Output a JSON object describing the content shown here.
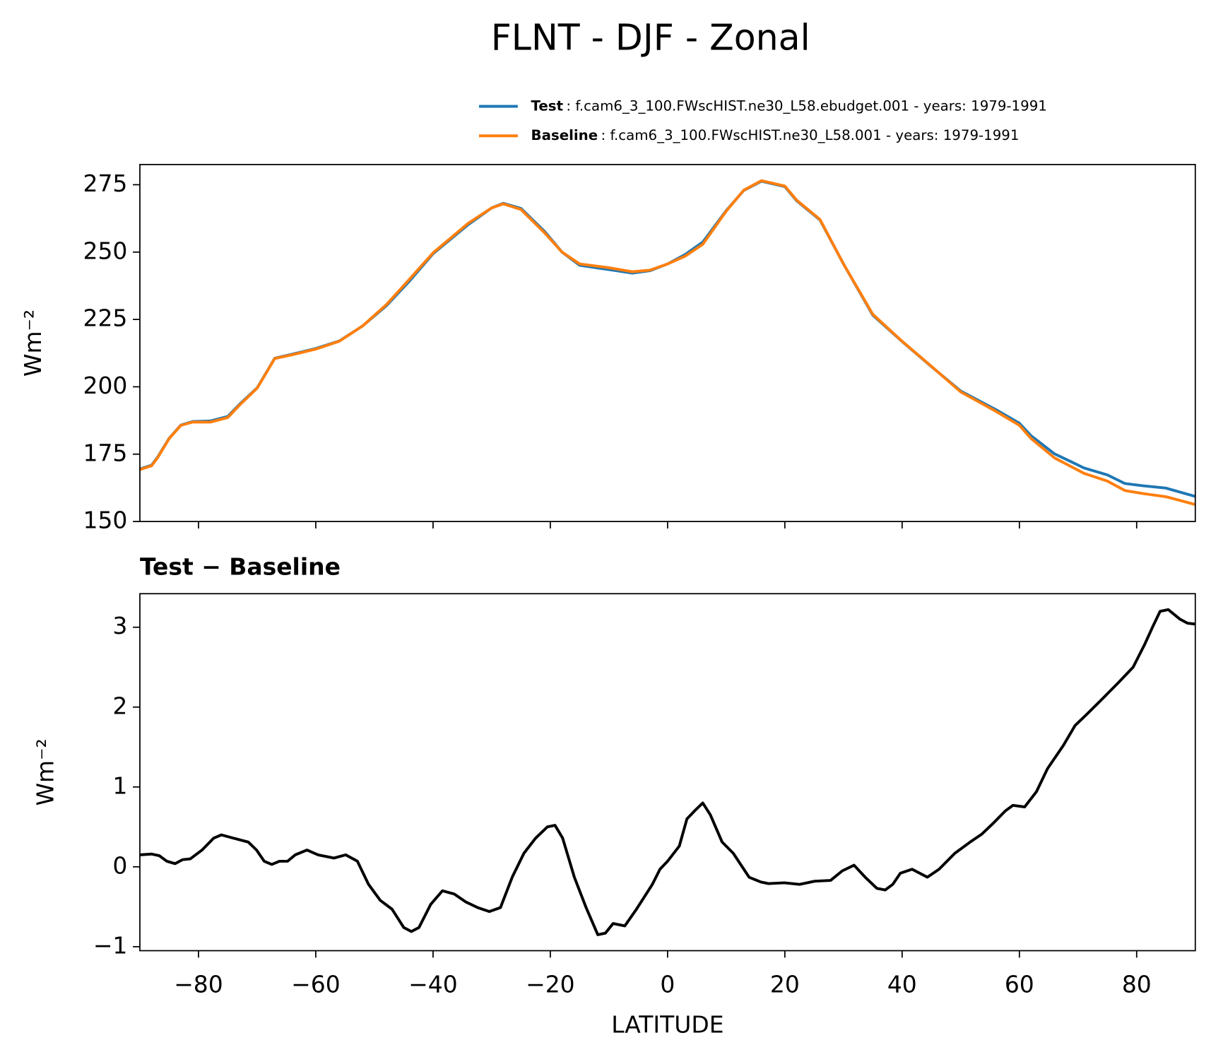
{
  "chart_data": [
    {
      "type": "line",
      "title": "FLNT - DJF - Zonal",
      "ylabel": "Wm⁻²",
      "xlim": [
        -90,
        90
      ],
      "ylim": [
        150,
        282.5
      ],
      "xticks": [
        -80,
        -60,
        -40,
        -20,
        0,
        20,
        40,
        60,
        80
      ],
      "yticks": [
        150,
        175,
        200,
        225,
        250,
        275
      ],
      "legend": "upper right",
      "x": [
        -90,
        -88,
        -87,
        -85,
        -83,
        -81,
        -78,
        -75,
        -73,
        -70,
        -67,
        -64,
        -60,
        -56,
        -52,
        -48,
        -44,
        -40,
        -34,
        -30,
        -28,
        -25,
        -21,
        -18,
        -15,
        -10,
        -6,
        -3,
        0,
        3,
        6,
        10,
        13,
        16,
        20,
        22,
        26,
        30,
        35,
        40,
        45,
        50,
        56,
        60,
        62,
        66,
        69,
        71,
        75,
        78,
        81,
        85,
        90
      ],
      "series": [
        {
          "name": "Test",
          "description": ": f.cam6_3_100.FWscHIST.ne30_L58.ebudget.001 - years: 1979-1991",
          "color": "#1f77b4",
          "values": [
            169.5,
            170.9,
            173.8,
            180.9,
            185.8,
            187.1,
            187.3,
            189.0,
            193.5,
            199.6,
            210.6,
            212.1,
            214.2,
            217.0,
            222.6,
            230.0,
            239.3,
            249.4,
            260.2,
            266.4,
            268.1,
            266.2,
            257.7,
            250.0,
            245.1,
            243.5,
            242.2,
            243.1,
            245.6,
            249.1,
            253.7,
            265.4,
            272.9,
            276.3,
            274.3,
            269.1,
            261.9,
            245.6,
            226.6,
            216.8,
            207.5,
            198.4,
            191.5,
            186.5,
            181.8,
            175.1,
            172.0,
            169.9,
            167.3,
            164.1,
            163.3,
            162.4,
            159.3
          ]
        },
        {
          "name": "Baseline",
          "description": ": f.cam6_3_100.FWscHIST.ne30_L58.001 - years: 1979-1991",
          "color": "#ff7f0e",
          "values": [
            169.3,
            170.7,
            173.6,
            180.8,
            185.7,
            186.9,
            186.9,
            188.6,
            193.2,
            199.5,
            210.5,
            211.9,
            214.0,
            216.9,
            222.6,
            230.4,
            240.0,
            249.7,
            260.7,
            266.4,
            267.9,
            265.8,
            257.2,
            250.0,
            245.6,
            244.2,
            242.7,
            243.3,
            245.6,
            248.5,
            252.9,
            265.2,
            273.0,
            276.5,
            274.5,
            269.3,
            262.1,
            245.6,
            226.9,
            216.9,
            207.6,
            198.1,
            190.9,
            185.7,
            180.8,
            173.6,
            170.2,
            167.9,
            165.0,
            161.5,
            160.4,
            159.2,
            156.3
          ]
        }
      ]
    },
    {
      "type": "line",
      "title": "Test − Baseline",
      "xlabel": "LATITUDE",
      "ylabel": "Wm⁻²",
      "xlim": [
        -90,
        90
      ],
      "ylim": [
        -1.05,
        3.42
      ],
      "xticks": [
        {
          "value": -80,
          "label": "−80"
        },
        {
          "value": -60,
          "label": "−60"
        },
        {
          "value": -40,
          "label": "−40"
        },
        {
          "value": -20,
          "label": "−20"
        },
        0,
        20,
        40,
        60,
        80
      ],
      "yticks": [
        {
          "value": -1,
          "label": "−1"
        },
        0,
        1,
        2,
        3
      ],
      "x": [
        -90,
        -88,
        -86.7,
        -85.4,
        -84,
        -82.7,
        -81.4,
        -79.4,
        -77.4,
        -76.1,
        -74.1,
        -71.5,
        -70.1,
        -68.8,
        -67.5,
        -66.2,
        -64.8,
        -63.5,
        -61.5,
        -59.6,
        -56.9,
        -54.9,
        -52.9,
        -51,
        -49,
        -47,
        -45,
        -43.7,
        -42.4,
        -40.4,
        -38.4,
        -36.4,
        -34.4,
        -32.4,
        -30.4,
        -28.5,
        -26.5,
        -24.5,
        -22.5,
        -20.5,
        -19.2,
        -17.9,
        -15.9,
        -13.9,
        -11.9,
        -10.6,
        -9.3,
        -7.3,
        -5.3,
        -2.6,
        -1.3,
        0,
        2,
        3.3,
        4.6,
        6,
        7.3,
        9.3,
        11.2,
        13.9,
        15.9,
        17.2,
        19.9,
        22.5,
        25.1,
        27.8,
        29.8,
        31.8,
        33.7,
        35.7,
        37.1,
        38.4,
        39.7,
        41.7,
        44.3,
        46.3,
        49,
        51.6,
        53.6,
        55.6,
        57.6,
        58.9,
        60.9,
        62.9,
        64.8,
        67.5,
        69.5,
        71.5,
        74.1,
        76.8,
        79.4,
        81.4,
        82.7,
        84,
        85.4,
        87.4,
        88.7,
        90
      ],
      "series": [
        {
          "name": "Test − Baseline",
          "color": "#000000",
          "values": [
            0.15,
            0.16,
            0.14,
            0.07,
            0.04,
            0.09,
            0.1,
            0.21,
            0.36,
            0.4,
            0.36,
            0.31,
            0.21,
            0.07,
            0.03,
            0.07,
            0.07,
            0.15,
            0.21,
            0.15,
            0.11,
            0.15,
            0.07,
            -0.22,
            -0.42,
            -0.53,
            -0.76,
            -0.81,
            -0.76,
            -0.47,
            -0.3,
            -0.34,
            -0.44,
            -0.51,
            -0.56,
            -0.51,
            -0.13,
            0.17,
            0.36,
            0.5,
            0.52,
            0.36,
            -0.13,
            -0.51,
            -0.85,
            -0.83,
            -0.71,
            -0.74,
            -0.53,
            -0.22,
            -0.03,
            0.07,
            0.26,
            0.6,
            0.7,
            0.8,
            0.65,
            0.31,
            0.17,
            -0.13,
            -0.19,
            -0.21,
            -0.2,
            -0.22,
            -0.18,
            -0.17,
            -0.05,
            0.02,
            -0.13,
            -0.27,
            -0.29,
            -0.22,
            -0.08,
            -0.03,
            -0.13,
            -0.03,
            0.17,
            0.31,
            0.41,
            0.55,
            0.7,
            0.77,
            0.75,
            0.94,
            1.23,
            1.52,
            1.77,
            1.91,
            2.1,
            2.3,
            2.5,
            2.79,
            3.0,
            3.2,
            3.22,
            3.1,
            3.05,
            3.04
          ]
        }
      ]
    }
  ]
}
